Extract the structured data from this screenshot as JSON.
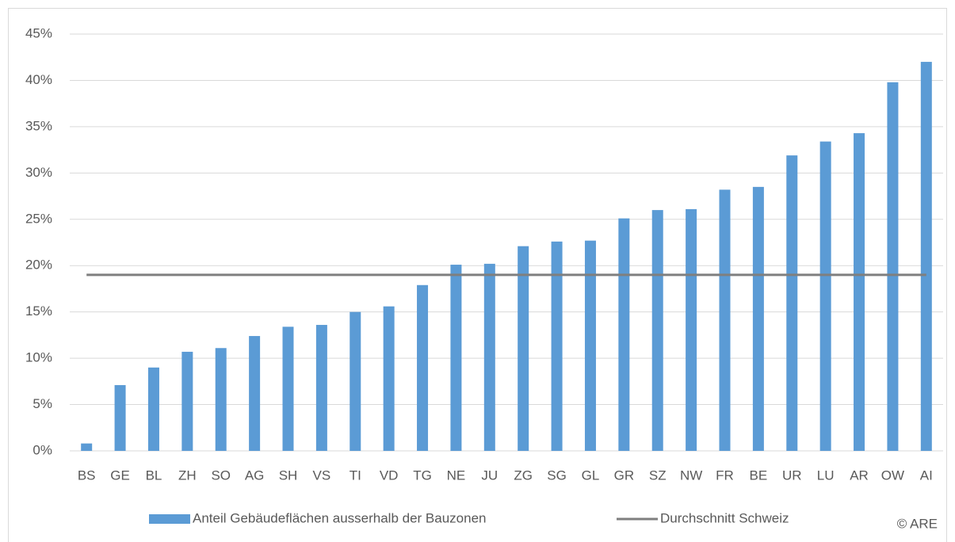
{
  "chart_data": {
    "type": "bar",
    "categories": [
      "BS",
      "GE",
      "BL",
      "ZH",
      "SO",
      "AG",
      "SH",
      "VS",
      "TI",
      "VD",
      "TG",
      "NE",
      "JU",
      "ZG",
      "SG",
      "GL",
      "GR",
      "SZ",
      "NW",
      "FR",
      "BE",
      "UR",
      "LU",
      "AR",
      "OW",
      "AI"
    ],
    "series": [
      {
        "name": "Anteil Gebäudeflächen ausserhalb der Bauzonen",
        "type": "bar",
        "color": "#5b9bd5",
        "values": [
          0.8,
          7.1,
          9.0,
          10.7,
          11.1,
          12.4,
          13.4,
          13.6,
          15.0,
          15.6,
          17.9,
          20.1,
          20.2,
          22.1,
          22.6,
          22.7,
          25.1,
          26.0,
          26.1,
          28.2,
          28.5,
          31.9,
          33.4,
          34.3,
          39.8,
          42.0
        ]
      },
      {
        "name": "Durchschnitt Schweiz",
        "type": "line",
        "color": "#7f7f7f",
        "values": [
          19,
          19,
          19,
          19,
          19,
          19,
          19,
          19,
          19,
          19,
          19,
          19,
          19,
          19,
          19,
          19,
          19,
          19,
          19,
          19,
          19,
          19,
          19,
          19,
          19,
          19
        ]
      }
    ],
    "ylim": [
      0,
      45
    ],
    "yticks": [
      {
        "value": 0,
        "label": "0%"
      },
      {
        "value": 5,
        "label": "5%"
      },
      {
        "value": 10,
        "label": "10%"
      },
      {
        "value": 15,
        "label": "15%"
      },
      {
        "value": 20,
        "label": "20%"
      },
      {
        "value": 25,
        "label": "25%"
      },
      {
        "value": 30,
        "label": "30%"
      },
      {
        "value": 35,
        "label": "35%"
      },
      {
        "value": 40,
        "label": "40%"
      },
      {
        "value": 45,
        "label": "45%"
      }
    ],
    "grid": true,
    "legend": "bottom",
    "annotation": "© ARE"
  }
}
